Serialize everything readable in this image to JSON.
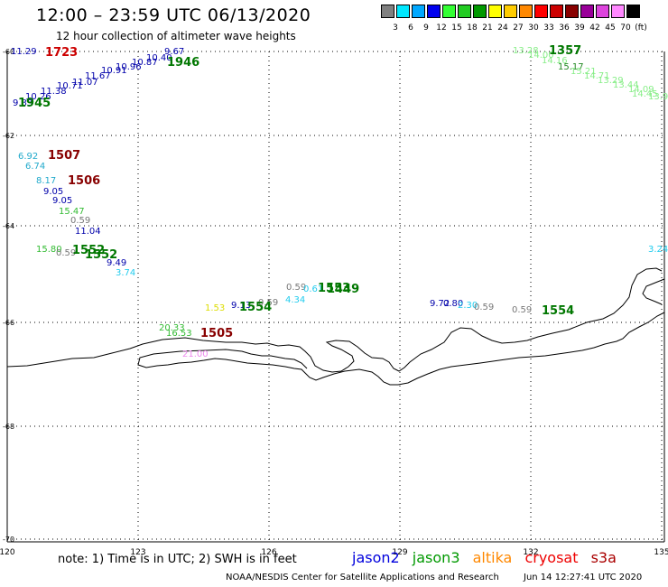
{
  "header": {
    "title": "12:00 – 23:59 UTC 06/13/2020",
    "subtitle": "12 hour collection of altimeter wave heights"
  },
  "scale": {
    "colors": [
      "#808080",
      "#00e8ff",
      "#00a8ff",
      "#0000ee",
      "#33ff33",
      "#22cc22",
      "#009900",
      "#ffff00",
      "#ffcc00",
      "#ff8800",
      "#ff0000",
      "#cc0000",
      "#880000",
      "#990099",
      "#dd44dd",
      "#ff88ff",
      "#000000"
    ],
    "labels": [
      "3",
      "6",
      "9",
      "12",
      "15",
      "18",
      "21",
      "24",
      "27",
      "30",
      "33",
      "36",
      "39",
      "42",
      "45",
      "70",
      "(ft)"
    ]
  },
  "axes": {
    "lat_labels": [
      "-60",
      "-62",
      "-64",
      "-66",
      "-68",
      "-70"
    ],
    "lon_labels": [
      "120",
      "123",
      "126",
      "129",
      "132",
      "135"
    ]
  },
  "observations": [
    {
      "text": "9.67",
      "color": "#0000aa"
    },
    {
      "text": "10.40",
      "color": "#0000aa"
    },
    {
      "text": "10.87",
      "color": "#0000aa"
    },
    {
      "text": "10.96",
      "color": "#0000aa"
    },
    {
      "text": "10.91",
      "color": "#0000aa"
    },
    {
      "text": "11.67",
      "color": "#0000aa"
    },
    {
      "text": "11.07",
      "color": "#0000aa"
    },
    {
      "text": "10.71",
      "color": "#0000aa"
    },
    {
      "text": "11.38",
      "color": "#0000aa"
    },
    {
      "text": "10.26",
      "color": "#0000aa"
    },
    {
      "text": "9.83",
      "color": "#0000aa"
    },
    {
      "text": "11.29",
      "color": "#0000aa"
    },
    {
      "text": "13.28",
      "color": "#88ee88"
    },
    {
      "text": "14.00",
      "color": "#88ee88"
    },
    {
      "text": "14.16",
      "color": "#88ee88"
    },
    {
      "text": "15.17",
      "color": "#228822"
    },
    {
      "text": "15.21",
      "color": "#88ee88"
    },
    {
      "text": "14.71",
      "color": "#88ee88"
    },
    {
      "text": "13.29",
      "color": "#88ee88"
    },
    {
      "text": "13.44",
      "color": "#88ee88"
    },
    {
      "text": "14.09",
      "color": "#88ee88"
    },
    {
      "text": "14.45",
      "color": "#88ee88"
    },
    {
      "text": "13.9",
      "color": "#88ee88"
    },
    {
      "text": "6.92",
      "color": "#22aacc"
    },
    {
      "text": "6.74",
      "color": "#22aacc"
    },
    {
      "text": "8.17",
      "color": "#22aacc"
    },
    {
      "text": "9.05",
      "color": "#0000aa"
    },
    {
      "text": "9.05",
      "color": "#0000aa"
    },
    {
      "text": "15.47",
      "color": "#33bb33"
    },
    {
      "text": "0.59",
      "color": "#777777"
    },
    {
      "text": "11.04",
      "color": "#0000aa"
    },
    {
      "text": "15.80",
      "color": "#33bb33"
    },
    {
      "text": "0.59",
      "color": "#777777"
    },
    {
      "text": "9.49",
      "color": "#0000aa"
    },
    {
      "text": "3.74",
      "color": "#22ccee"
    },
    {
      "text": "0.59",
      "color": "#777777"
    },
    {
      "text": "0.61",
      "color": "#22ccee"
    },
    {
      "text": "4.34",
      "color": "#22ccee"
    },
    {
      "text": "1.53",
      "color": "#dddd00"
    },
    {
      "text": "9.13",
      "color": "#0000aa"
    },
    {
      "text": "0.59",
      "color": "#777777"
    },
    {
      "text": "20.33",
      "color": "#33bb33"
    },
    {
      "text": "16.53",
      "color": "#33bb33"
    },
    {
      "text": "21.00",
      "color": "#ee88ee"
    },
    {
      "text": "9.72",
      "color": "#0000aa"
    },
    {
      "text": "0.80",
      "color": "#0000aa"
    },
    {
      "text": "2.30",
      "color": "#22ccee"
    },
    {
      "text": "0.59",
      "color": "#777777"
    },
    {
      "text": "0.59",
      "color": "#777777"
    },
    {
      "text": "3.24",
      "color": "#22ccee"
    }
  ],
  "pass_times": [
    {
      "text": "1723",
      "color": "#cc0000"
    },
    {
      "text": "1946",
      "color": "#007700"
    },
    {
      "text": "1945",
      "color": "#007700"
    },
    {
      "text": "1357",
      "color": "#007700"
    },
    {
      "text": "1507",
      "color": "#880000"
    },
    {
      "text": "1506",
      "color": "#880000"
    },
    {
      "text": "1552",
      "color": "#007700"
    },
    {
      "text": "1552",
      "color": "#007700"
    },
    {
      "text": "1554",
      "color": "#007700"
    },
    {
      "text": "1553",
      "color": "#007700"
    },
    {
      "text": "1505",
      "color": "#880000"
    },
    {
      "text": "1554",
      "color": "#007700"
    },
    {
      "text": "1449",
      "color": "#007700"
    }
  ],
  "footer": {
    "note": "note:  1) Time is in UTC;  2) SWH is in feet",
    "satellites": [
      {
        "name": "jason2",
        "color": "#0000dd"
      },
      {
        "name": "jason3",
        "color": "#009900"
      },
      {
        "name": "altika",
        "color": "#ff8800"
      },
      {
        "name": "cryosat",
        "color": "#ee0000"
      },
      {
        "name": "s3a",
        "color": "#aa0000"
      }
    ],
    "credit": "NOAA/NESDIS Center for Satellite Applications and Research",
    "timestamp": "Jun 14 12:27:41 UTC 2020"
  }
}
